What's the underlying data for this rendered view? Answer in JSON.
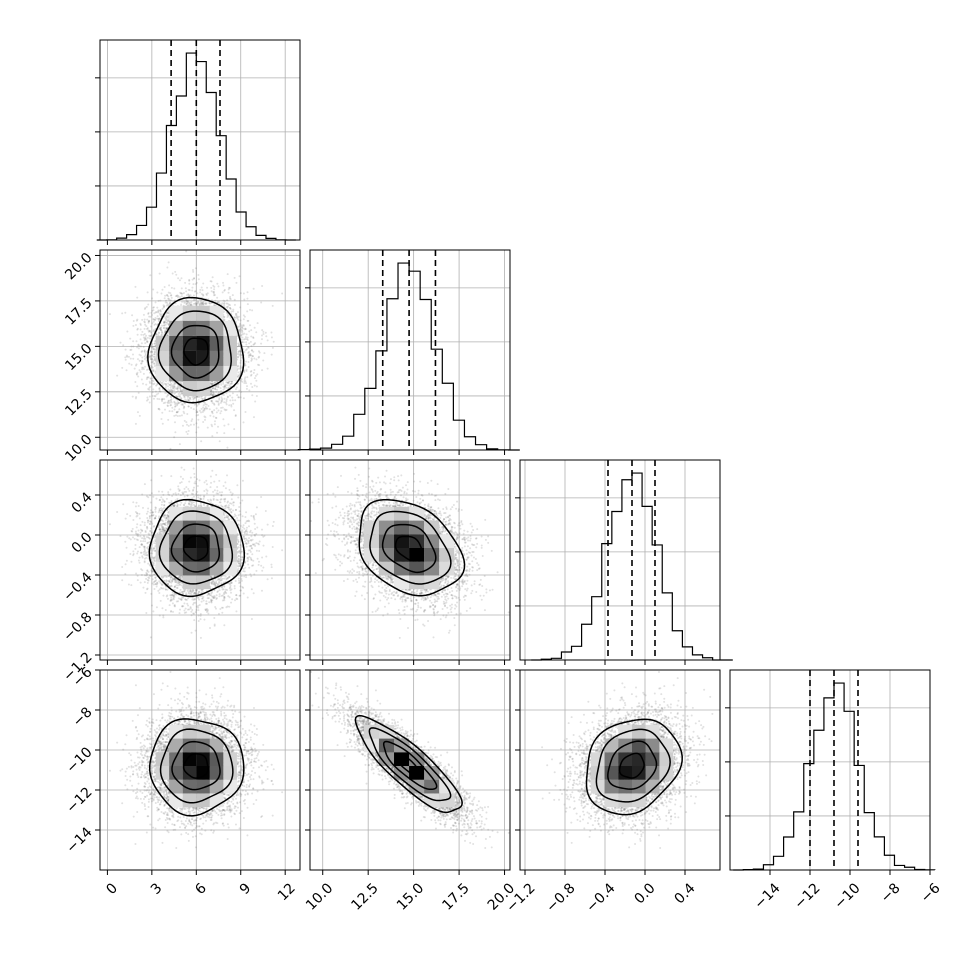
{
  "chart_data": {
    "type": "corner",
    "title": "",
    "parameters": [
      {
        "range": [
          -0.5,
          13.0
        ],
        "ticks": [
          0,
          3,
          6,
          9,
          12
        ],
        "tick_labels": [
          "0",
          "3",
          "6",
          "9",
          "12"
        ],
        "mean": 6.0,
        "std": 1.6,
        "quantiles": [
          4.3,
          6.0,
          7.6
        ]
      },
      {
        "range": [
          9.3,
          20.3
        ],
        "ticks": [
          10.0,
          12.5,
          15.0,
          17.5,
          20.0
        ],
        "tick_labels": [
          "10.0",
          "12.5",
          "15.0",
          "17.5",
          "20.0"
        ],
        "mean": 14.75,
        "std": 1.45,
        "quantiles": [
          13.3,
          14.75,
          16.2
        ]
      },
      {
        "range": [
          -1.25,
          0.75
        ],
        "ticks": [
          -1.2,
          -0.8,
          -0.4,
          0.0,
          0.4
        ],
        "tick_labels": [
          "−1.2",
          "−0.8",
          "−0.4",
          "0.0",
          "0.4"
        ],
        "mean": -0.13,
        "std": 0.24,
        "quantiles": [
          -0.37,
          -0.13,
          0.1
        ]
      },
      {
        "range": [
          -16.0,
          -6.0
        ],
        "ticks": [
          -14,
          -12,
          -10,
          -8,
          -6
        ],
        "tick_labels": [
          "−14",
          "−12",
          "−10",
          "−8",
          "−6"
        ],
        "mean": -10.8,
        "std": 1.2,
        "quantiles": [
          -12.0,
          -10.8,
          -9.6
        ]
      }
    ],
    "correlations": [
      [
        1.0,
        0.0,
        0.0,
        0.0
      ],
      [
        0.0,
        1.0,
        -0.3,
        -0.85
      ],
      [
        0.0,
        -0.3,
        1.0,
        0.2
      ],
      [
        0.0,
        -0.85,
        0.2,
        1.0
      ]
    ],
    "histogram_bins": 20,
    "contour_levels": [
      0.12,
      0.39,
      0.68,
      0.86
    ],
    "grid": true,
    "diagonal": "histogram",
    "off_diagonal": "2d-density-with-contours"
  }
}
